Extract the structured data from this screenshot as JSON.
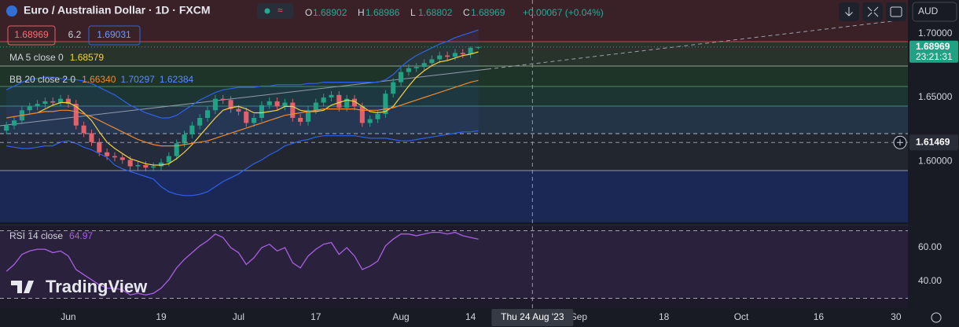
{
  "header": {
    "symbol": "Euro / Australian Dollar · 1D · FXCM",
    "ohlc": [
      {
        "key": "O",
        "value": "1.68902"
      },
      {
        "key": "H",
        "value": "1.68986"
      },
      {
        "key": "L",
        "value": "1.68802"
      },
      {
        "key": "C",
        "value": "1.68969"
      }
    ],
    "change": "+0.00067 (+0.04%)",
    "sell": "1.68969",
    "spread": "6.2",
    "buy": "1.69031",
    "currency": "AUD"
  },
  "price_tag": {
    "countdown": "23:21:31"
  },
  "crosshair": {
    "x": 68,
    "y": 1.61469,
    "x_label": "Thu 24 Aug '23"
  },
  "brand": "TradingView",
  "chart_data": [
    {
      "type": "candlestick",
      "up_color": "#22a285",
      "down_color": "#e4606a",
      "xlim": [
        -0.833,
        116.54
      ],
      "xticks": [
        {
          "value": 8,
          "label": "Jun"
        },
        {
          "value": 20,
          "label": "19"
        },
        {
          "value": 30,
          "label": "Jul"
        },
        {
          "value": 40,
          "label": "17"
        },
        {
          "value": 51,
          "label": "Aug"
        },
        {
          "value": 60,
          "label": "14"
        },
        {
          "value": 74,
          "label": "Sep"
        },
        {
          "value": 85,
          "label": "18"
        },
        {
          "value": 95,
          "label": "Oct"
        },
        {
          "value": 105,
          "label": "16"
        },
        {
          "value": 115,
          "label": "30"
        }
      ],
      "ylim": [
        1.55193,
        1.70926
      ],
      "yticks": [
        {
          "value": 1.6,
          "label": "1.60000"
        },
        {
          "value": 1.65,
          "label": "1.65000"
        },
        {
          "value": 1.7,
          "label": "1.70000"
        }
      ],
      "grid": false,
      "open": [
        1.624,
        1.628,
        1.632,
        1.64,
        1.643,
        1.645,
        1.647,
        1.646,
        1.649,
        1.645,
        1.628,
        1.622,
        1.615,
        1.607,
        1.604,
        1.603,
        1.601,
        1.596,
        1.597,
        1.595,
        1.596,
        1.599,
        1.604,
        1.614,
        1.621,
        1.628,
        1.634,
        1.64,
        1.649,
        1.648,
        1.641,
        1.639,
        1.63,
        1.634,
        1.644,
        1.647,
        1.643,
        1.646,
        1.634,
        1.631,
        1.64,
        1.646,
        1.65,
        1.652,
        1.642,
        1.649,
        1.643,
        1.63,
        1.633,
        1.637,
        1.653,
        1.662,
        1.67,
        1.673,
        1.674,
        1.677,
        1.68,
        1.683,
        1.682,
        1.685,
        1.684,
        1.68902
      ],
      "high": [
        1.631,
        1.635,
        1.643,
        1.646,
        1.648,
        1.65,
        1.65,
        1.652,
        1.652,
        1.648,
        1.631,
        1.625,
        1.618,
        1.61,
        1.607,
        1.606,
        1.604,
        1.6,
        1.6,
        1.599,
        1.602,
        1.607,
        1.617,
        1.624,
        1.631,
        1.637,
        1.643,
        1.652,
        1.652,
        1.651,
        1.644,
        1.642,
        1.637,
        1.647,
        1.65,
        1.65,
        1.649,
        1.649,
        1.637,
        1.643,
        1.649,
        1.653,
        1.655,
        1.655,
        1.652,
        1.652,
        1.646,
        1.636,
        1.64,
        1.656,
        1.665,
        1.673,
        1.676,
        1.677,
        1.68,
        1.683,
        1.686,
        1.686,
        1.688,
        1.688,
        1.69,
        1.68986
      ],
      "low": [
        1.621,
        1.625,
        1.629,
        1.637,
        1.64,
        1.642,
        1.643,
        1.643,
        1.642,
        1.625,
        1.619,
        1.612,
        1.604,
        1.601,
        1.6,
        1.598,
        1.593,
        1.593,
        1.592,
        1.592,
        1.593,
        1.596,
        1.601,
        1.611,
        1.618,
        1.625,
        1.631,
        1.637,
        1.645,
        1.638,
        1.636,
        1.627,
        1.627,
        1.631,
        1.641,
        1.64,
        1.64,
        1.631,
        1.628,
        1.628,
        1.637,
        1.643,
        1.647,
        1.639,
        1.639,
        1.64,
        1.627,
        1.627,
        1.63,
        1.634,
        1.65,
        1.659,
        1.667,
        1.67,
        1.671,
        1.674,
        1.677,
        1.679,
        1.679,
        1.681,
        1.681,
        1.68802
      ],
      "close": [
        1.628,
        1.632,
        1.64,
        1.643,
        1.645,
        1.647,
        1.646,
        1.649,
        1.645,
        1.628,
        1.622,
        1.615,
        1.607,
        1.604,
        1.603,
        1.601,
        1.596,
        1.597,
        1.595,
        1.596,
        1.599,
        1.604,
        1.614,
        1.621,
        1.628,
        1.634,
        1.64,
        1.649,
        1.648,
        1.641,
        1.639,
        1.63,
        1.634,
        1.644,
        1.647,
        1.643,
        1.646,
        1.634,
        1.631,
        1.64,
        1.646,
        1.65,
        1.652,
        1.642,
        1.649,
        1.643,
        1.63,
        1.633,
        1.637,
        1.653,
        1.662,
        1.67,
        1.673,
        1.674,
        1.677,
        1.68,
        1.683,
        1.682,
        1.685,
        1.684,
        1.68902,
        1.68969
      ],
      "series": [
        {
          "name": "MA 5 close 0",
          "color": "#f2d33a",
          "values": [
            null,
            null,
            null,
            null,
            1.638,
            1.641,
            1.644,
            1.646,
            1.646,
            1.643,
            1.638,
            1.632,
            1.623,
            1.615,
            1.61,
            1.606,
            1.602,
            1.6,
            1.598,
            1.597,
            1.597,
            1.598,
            1.602,
            1.607,
            1.613,
            1.62,
            1.627,
            1.634,
            1.64,
            1.642,
            1.643,
            1.641,
            1.638,
            1.638,
            1.639,
            1.64,
            1.643,
            1.643,
            1.64,
            1.639,
            1.639,
            1.64,
            1.644,
            1.646,
            1.648,
            1.647,
            1.643,
            1.639,
            1.638,
            1.639,
            1.643,
            1.651,
            1.659,
            1.666,
            1.671,
            1.675,
            1.678,
            1.679,
            1.681,
            1.683,
            1.684,
            1.68579
          ]
        },
        {
          "name": "BB 20 close 2 0",
          "color": "#f0892d",
          "band_color": "#2e62e8",
          "legend_values": [
            "1.66340",
            "1.70297",
            "1.62384"
          ],
          "values": [
            1.634,
            1.635,
            1.636,
            1.637,
            1.638,
            1.639,
            1.639,
            1.64,
            1.64,
            1.639,
            1.637,
            1.635,
            1.632,
            1.629,
            1.626,
            1.623,
            1.62,
            1.617,
            1.615,
            1.613,
            1.612,
            1.612,
            1.612,
            1.613,
            1.614,
            1.615,
            1.616,
            1.618,
            1.62,
            1.622,
            1.624,
            1.626,
            1.628,
            1.63,
            1.632,
            1.634,
            1.636,
            1.637,
            1.638,
            1.639,
            1.64,
            1.641,
            1.641,
            1.641,
            1.641,
            1.641,
            1.64,
            1.64,
            1.64,
            1.641,
            1.642,
            1.644,
            1.646,
            1.648,
            1.65,
            1.652,
            1.654,
            1.656,
            1.658,
            1.66,
            1.662,
            1.6634
          ],
          "upper": [
            1.656,
            1.659,
            1.662,
            1.664,
            1.665,
            1.666,
            1.666,
            1.665,
            1.664,
            1.664,
            1.663,
            1.661,
            1.658,
            1.655,
            1.652,
            1.648,
            1.644,
            1.641,
            1.638,
            1.636,
            1.634,
            1.634,
            1.636,
            1.64,
            1.644,
            1.648,
            1.651,
            1.654,
            1.656,
            1.657,
            1.658,
            1.658,
            1.658,
            1.659,
            1.659,
            1.66,
            1.66,
            1.66,
            1.66,
            1.661,
            1.661,
            1.662,
            1.662,
            1.662,
            1.662,
            1.662,
            1.662,
            1.662,
            1.662,
            1.664,
            1.668,
            1.674,
            1.679,
            1.683,
            1.686,
            1.689,
            1.692,
            1.694,
            1.697,
            1.699,
            1.701,
            1.70297
          ],
          "lower": [
            1.612,
            1.611,
            1.61,
            1.61,
            1.611,
            1.612,
            1.612,
            1.615,
            1.616,
            1.614,
            1.611,
            1.609,
            1.606,
            1.603,
            1.597,
            1.594,
            1.592,
            1.59,
            1.588,
            1.586,
            1.58,
            1.576,
            1.574,
            1.573,
            1.573,
            1.574,
            1.576,
            1.58,
            1.584,
            1.587,
            1.59,
            1.594,
            1.598,
            1.601,
            1.605,
            1.608,
            1.612,
            1.614,
            1.616,
            1.617,
            1.619,
            1.62,
            1.62,
            1.62,
            1.62,
            1.62,
            1.619,
            1.618,
            1.618,
            1.618,
            1.617,
            1.616,
            1.616,
            1.617,
            1.618,
            1.619,
            1.62,
            1.621,
            1.622,
            1.623,
            1.623,
            1.62384
          ]
        }
      ]
    },
    {
      "type": "line",
      "ylim": [
        24.2,
        71.6
      ],
      "yticks": [
        {
          "value": 40,
          "label": "40.00"
        },
        {
          "value": 60,
          "label": "60.00"
        }
      ],
      "levels": [
        70,
        30
      ],
      "grid": false,
      "series": [
        {
          "name": "RSI 14 close",
          "color": "#a95fe0",
          "values": [
            46,
            50,
            56,
            58,
            59,
            59,
            57,
            58,
            55,
            47,
            44,
            41,
            38,
            36,
            36,
            35,
            32,
            33,
            32,
            33,
            36,
            41,
            48,
            53,
            57,
            61,
            64,
            68,
            66,
            60,
            57,
            50,
            54,
            60,
            62,
            58,
            60,
            51,
            48,
            55,
            59,
            62,
            63,
            56,
            60,
            55,
            47,
            49,
            52,
            61,
            65,
            68,
            68,
            67,
            68,
            69,
            69,
            68,
            69,
            67,
            66,
            64.97
          ]
        }
      ]
    }
  ]
}
